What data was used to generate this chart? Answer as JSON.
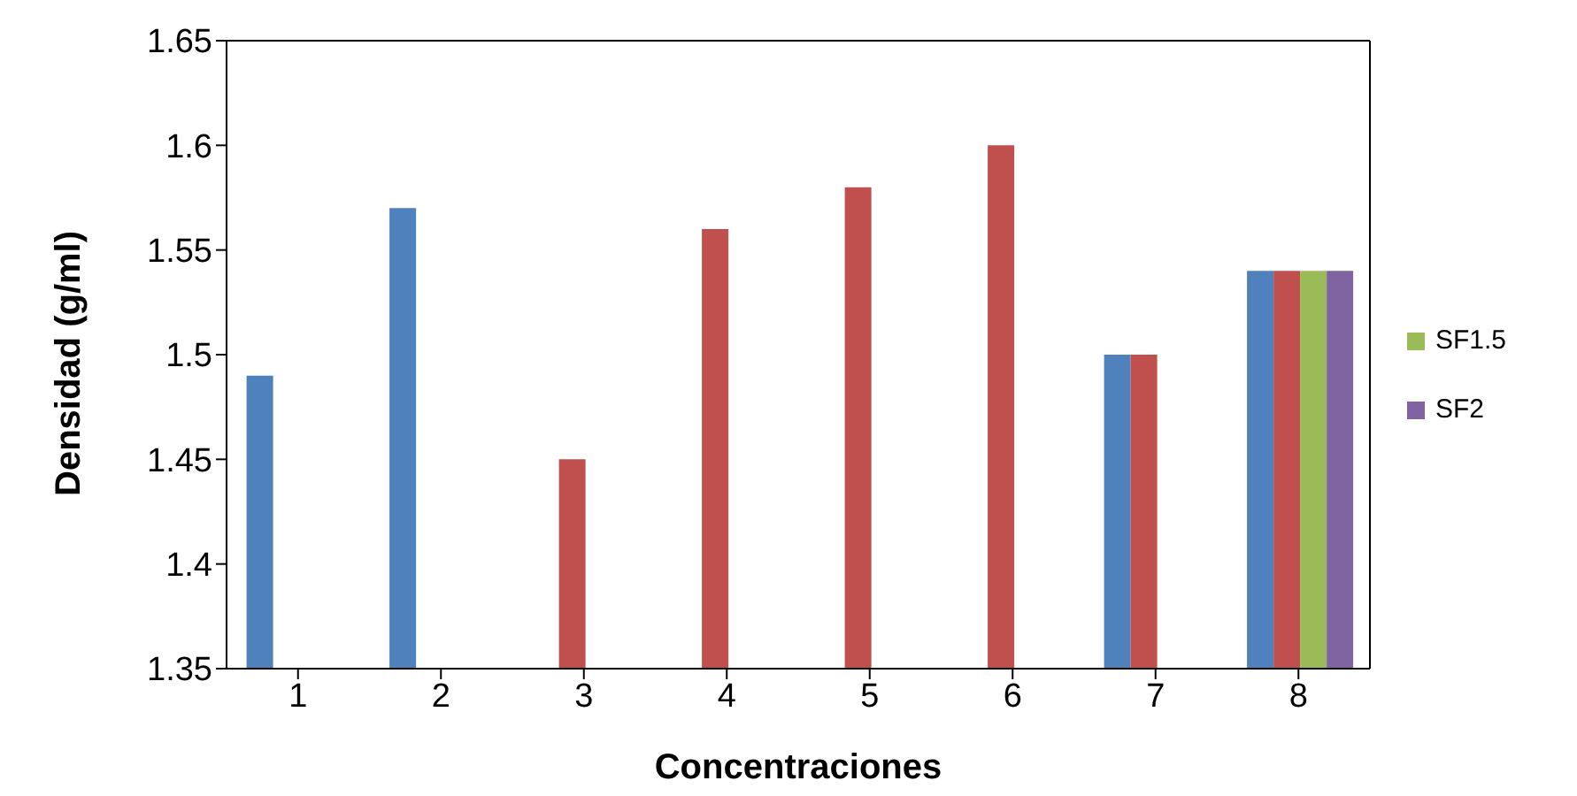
{
  "chart_data": {
    "type": "bar",
    "xlabel": "Concentraciones",
    "ylabel": "Densidad (g/ml)",
    "categories": [
      "1",
      "2",
      "3",
      "4",
      "5",
      "6",
      "7",
      "8"
    ],
    "series": [
      {
        "color": "#4f81bd",
        "values": [
          1.49,
          1.57,
          null,
          null,
          null,
          null,
          1.5,
          1.54
        ]
      },
      {
        "color": "#c0504d",
        "values": [
          null,
          null,
          1.45,
          1.56,
          1.58,
          1.6,
          1.5,
          1.54
        ]
      },
      {
        "name": "SF1.5",
        "color": "#9bbb59",
        "values": [
          null,
          null,
          null,
          null,
          null,
          null,
          null,
          1.54
        ]
      },
      {
        "name": "SF2",
        "color": "#8064a2",
        "values": [
          null,
          null,
          null,
          null,
          null,
          null,
          null,
          1.54
        ]
      }
    ],
    "ylim": [
      1.35,
      1.65
    ],
    "yticks": [
      1.35,
      1.4,
      1.45,
      1.5,
      1.55,
      1.6,
      1.65
    ],
    "grid": false,
    "legend": "right"
  }
}
